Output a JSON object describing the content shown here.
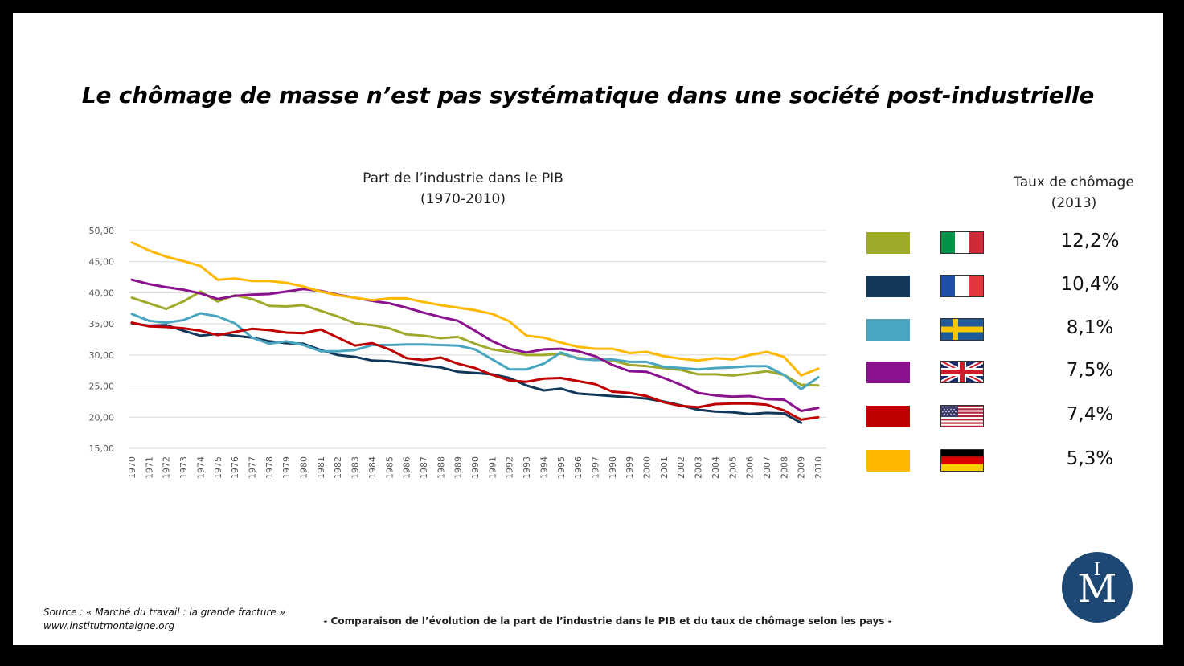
{
  "title": "Le chômage de masse n’est pas systématique dans une société post-industrielle",
  "chart_title_line1": "Part de l’industrie dans le PIB",
  "chart_title_line2": "(1970-2010)",
  "rate_title_line1": "Taux de chômage",
  "rate_title_line2": "(2013)",
  "legend": [
    {
      "flag_icon": "italy-flag-icon",
      "color": "#9FAA2B",
      "rate": "12,2%"
    },
    {
      "flag_icon": "france-flag-icon",
      "color": "#11375A",
      "rate": "10,4%"
    },
    {
      "flag_icon": "sweden-flag-icon",
      "color": "#4AA6C0",
      "rate": "8,1%"
    },
    {
      "flag_icon": "uk-flag-icon",
      "color": "#8B128E",
      "rate": "7,5%"
    },
    {
      "flag_icon": "usa-flag-icon",
      "color": "#C00000",
      "rate": "7,4%"
    },
    {
      "flag_icon": "germany-flag-icon",
      "color": "#FFB800",
      "rate": "5,3%"
    }
  ],
  "source_line1": "Source : « Marché du travail : la grande fracture »",
  "source_line2": "www.institutmontaigne.org",
  "caption": "- Comparaison de l’évolution de la part de l’industrie dans le PIB et du taux de chômage selon les pays -",
  "logo_text": "IM",
  "chart_data": {
    "type": "line",
    "title": "Part de l’industrie dans le PIB",
    "subtitle": "(1970-2010)",
    "xlabel": "",
    "ylabel": "",
    "ylim": [
      15,
      50
    ],
    "yticks": [
      "15,00",
      "20,00",
      "25,00",
      "30,00",
      "35,00",
      "40,00",
      "45,00",
      "50,00"
    ],
    "grid": true,
    "categories": [
      "1970",
      "1971",
      "1972",
      "1973",
      "1974",
      "1975",
      "1976",
      "1977",
      "1978",
      "1979",
      "1980",
      "1981",
      "1982",
      "1983",
      "1984",
      "1985",
      "1986",
      "1987",
      "1988",
      "1989",
      "1990",
      "1991",
      "1992",
      "1993",
      "1994",
      "1995",
      "1996",
      "1997",
      "1998",
      "1999",
      "2000",
      "2001",
      "2002",
      "2003",
      "2004",
      "2005",
      "2006",
      "2007",
      "2008",
      "2009",
      "2010"
    ],
    "series": [
      {
        "color": "#9FAA2B",
        "values": [
          39.2,
          38.3,
          37.4,
          38.6,
          40.2,
          38.6,
          39.6,
          39.0,
          37.9,
          37.8,
          38.0,
          37.1,
          36.2,
          35.1,
          34.8,
          34.3,
          33.3,
          33.1,
          32.7,
          32.9,
          31.8,
          30.9,
          30.5,
          30.0,
          30.0,
          30.2,
          29.5,
          29.3,
          29.1,
          28.4,
          28.2,
          27.9,
          27.6,
          26.9,
          26.9,
          26.7,
          27.0,
          27.4,
          26.8,
          25.2,
          25.1
        ]
      },
      {
        "color": "#11375A",
        "values": [
          35.1,
          34.7,
          34.8,
          33.9,
          33.1,
          33.4,
          33.1,
          32.8,
          32.2,
          31.9,
          31.8,
          30.8,
          30.0,
          29.7,
          29.1,
          29.0,
          28.7,
          28.3,
          28.0,
          27.3,
          27.1,
          26.9,
          26.3,
          25.1,
          24.3,
          24.6,
          23.8,
          23.6,
          23.4,
          23.2,
          23.0,
          22.5,
          21.9,
          21.2,
          20.9,
          20.8,
          20.5,
          20.7,
          20.6,
          19.1,
          null
        ]
      },
      {
        "color": "#4AA6C0",
        "values": [
          36.6,
          35.5,
          35.2,
          35.6,
          36.7,
          36.2,
          35.1,
          32.8,
          31.8,
          32.2,
          31.6,
          30.6,
          30.6,
          30.8,
          31.6,
          31.6,
          31.7,
          31.7,
          31.6,
          31.5,
          30.9,
          29.3,
          27.7,
          27.7,
          28.6,
          30.4,
          29.4,
          29.2,
          29.3,
          28.9,
          28.9,
          28.1,
          27.9,
          27.7,
          27.9,
          28.0,
          28.2,
          28.2,
          26.8,
          24.5,
          26.4
        ]
      },
      {
        "color": "#8B128E",
        "values": [
          42.1,
          41.4,
          40.9,
          40.5,
          39.9,
          39.0,
          39.5,
          39.7,
          39.8,
          40.2,
          40.6,
          40.3,
          39.7,
          39.2,
          38.7,
          38.3,
          37.6,
          36.8,
          36.1,
          35.5,
          33.9,
          32.2,
          31.0,
          30.4,
          30.9,
          31.0,
          30.6,
          29.8,
          28.4,
          27.4,
          27.3,
          26.3,
          25.2,
          23.9,
          23.5,
          23.3,
          23.4,
          22.9,
          22.8,
          21.0,
          21.5
        ]
      },
      {
        "color": "#C00000",
        "values": [
          35.2,
          34.6,
          34.5,
          34.3,
          33.9,
          33.2,
          33.7,
          34.2,
          34.0,
          33.6,
          33.5,
          34.1,
          32.8,
          31.5,
          31.9,
          30.9,
          29.5,
          29.2,
          29.6,
          28.6,
          27.9,
          26.8,
          25.9,
          25.7,
          26.2,
          26.3,
          25.8,
          25.3,
          24.1,
          23.9,
          23.4,
          22.4,
          21.8,
          21.6,
          22.1,
          22.2,
          22.2,
          22.0,
          21.1,
          19.6,
          20.0
        ]
      },
      {
        "color": "#FFB800",
        "values": [
          48.1,
          46.8,
          45.8,
          45.1,
          44.3,
          42.1,
          42.3,
          41.9,
          41.9,
          41.6,
          41.0,
          40.2,
          39.6,
          39.2,
          38.8,
          39.1,
          39.1,
          38.5,
          38.0,
          37.6,
          37.2,
          36.6,
          35.4,
          33.1,
          32.8,
          32.0,
          31.3,
          31.0,
          31.0,
          30.3,
          30.5,
          29.8,
          29.4,
          29.1,
          29.5,
          29.3,
          30.0,
          30.5,
          29.7,
          26.7,
          27.8
        ]
      }
    ]
  }
}
